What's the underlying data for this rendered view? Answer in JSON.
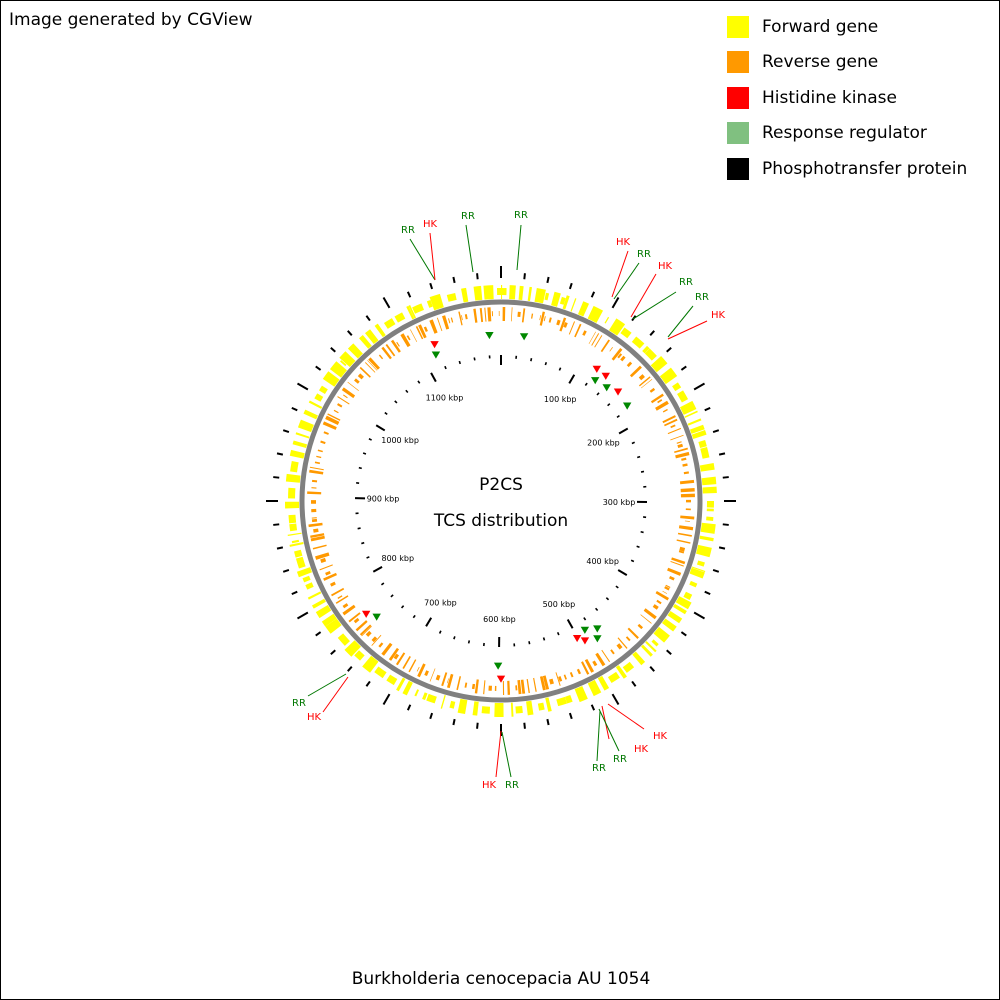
{
  "header": {
    "credit": "Image generated by CGView"
  },
  "legend": [
    {
      "label": "Forward gene",
      "color": "#ffff00"
    },
    {
      "label": "Reverse gene",
      "color": "#ff9900"
    },
    {
      "label": "Histidine kinase",
      "color": "#ff0000"
    },
    {
      "label": "Response regulator",
      "color": "#80c080"
    },
    {
      "label": "Phosphotransfer protein",
      "color": "#000000"
    }
  ],
  "map": {
    "title_line1": "P2CS",
    "title_line2": "TCS distribution",
    "genome_size_kbp": 1195,
    "backbone_color": "#808080",
    "tick_labels": [
      "100 kbp",
      "200 kbp",
      "300 kbp",
      "400 kbp",
      "500 kbp",
      "600 kbp",
      "700 kbp",
      "800 kbp",
      "900 kbp",
      "1000 kbp",
      "1100 kbp"
    ],
    "feature_labels": [
      {
        "text": "RR",
        "type": "response_regulator",
        "color": "#007700"
      },
      {
        "text": "HK",
        "type": "histidine_kinase",
        "color": "#ff0000"
      },
      {
        "text": "RR",
        "type": "response_regulator",
        "color": "#007700"
      },
      {
        "text": "RR",
        "type": "response_regulator",
        "color": "#007700"
      },
      {
        "text": "HK",
        "type": "histidine_kinase",
        "color": "#ff0000"
      },
      {
        "text": "RR",
        "type": "response_regulator",
        "color": "#007700"
      },
      {
        "text": "HK",
        "type": "histidine_kinase",
        "color": "#ff0000"
      },
      {
        "text": "RR",
        "type": "response_regulator",
        "color": "#007700"
      },
      {
        "text": "RR",
        "type": "response_regulator",
        "color": "#007700"
      },
      {
        "text": "HK",
        "type": "histidine_kinase",
        "color": "#ff0000"
      },
      {
        "text": "HK",
        "type": "histidine_kinase",
        "color": "#ff0000"
      },
      {
        "text": "RR",
        "type": "response_regulator",
        "color": "#007700"
      },
      {
        "text": "RR",
        "type": "response_regulator",
        "color": "#007700"
      },
      {
        "text": "HK",
        "type": "histidine_kinase",
        "color": "#ff0000"
      },
      {
        "text": "HK",
        "type": "histidine_kinase",
        "color": "#ff0000"
      },
      {
        "text": "RR",
        "type": "response_regulator",
        "color": "#007700"
      },
      {
        "text": "RR",
        "type": "response_regulator",
        "color": "#007700"
      },
      {
        "text": "HK",
        "type": "histidine_kinase",
        "color": "#ff0000"
      }
    ]
  },
  "footer": {
    "organism": "Burkholderia cenocepacia AU 1054"
  }
}
